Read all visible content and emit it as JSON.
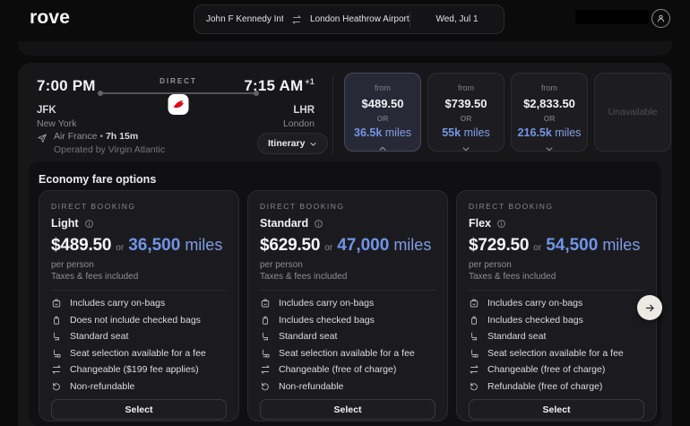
{
  "colors": {
    "accent_miles_blue": "#7495e6",
    "brand_logo_red": "#dd0b1c",
    "selected_card_border": "#45485c",
    "arrow_button_bg": "#edeae3"
  },
  "brand": {
    "logo_text": "rove"
  },
  "header": {
    "search": {
      "origin": "John F Kennedy Internatior",
      "destination": "London Heathrow Airport (L",
      "date": "Wed, Jul 1"
    }
  },
  "flight": {
    "departure": {
      "time": "7:00 PM",
      "airport_code": "JFK",
      "city": "New York"
    },
    "arrival": {
      "time": "7:15 AM",
      "day_offset": "+1",
      "airport_code": "LHR",
      "city": "London"
    },
    "route_type": "DIRECT",
    "airline": "Air France",
    "separator": "•",
    "duration": "7h 15m",
    "operated_by": "Operated by Virgin Atlantic",
    "itinerary_label": "Itinerary"
  },
  "price_summary": {
    "cards": [
      {
        "from_label": "from",
        "price": "$489.50",
        "or_label": "OR",
        "miles": "36.5k",
        "miles_word": "miles",
        "chev": "chevron-up",
        "state": "selected"
      },
      {
        "from_label": "from",
        "price": "$739.50",
        "or_label": "OR",
        "miles": "55k",
        "miles_word": "miles",
        "chev": "chevron-down"
      },
      {
        "from_label": "from",
        "price": "$2,833.50",
        "or_label": "OR",
        "miles": "216.5k",
        "miles_word": "miles",
        "chev": "chevron-down"
      }
    ],
    "unavailable_label": "Unavailable"
  },
  "fare_section": {
    "title": "Economy fare options",
    "cards": [
      {
        "eyebrow": "DIRECT BOOKING",
        "name": "Light",
        "price": "$489.50",
        "or_label": "or",
        "miles": "36,500",
        "miles_word": "miles",
        "per_person": "per person",
        "taxes_note": "Taxes & fees included",
        "features": [
          {
            "icon": "carry-on-bag",
            "text": "Includes carry on-bags"
          },
          {
            "icon": "checked-bag",
            "text": "Does not include checked bags"
          },
          {
            "icon": "seat",
            "text": "Standard seat"
          },
          {
            "icon": "seat-selection",
            "text": "Seat selection available for a fee"
          },
          {
            "icon": "change-arrows",
            "text": "Changeable ($199 fee applies)"
          },
          {
            "icon": "refund",
            "text": "Non-refundable"
          }
        ],
        "select_label": "Select"
      },
      {
        "eyebrow": "DIRECT BOOKING",
        "name": "Standard",
        "price": "$629.50",
        "or_label": "or",
        "miles": "47,000",
        "miles_word": "miles",
        "per_person": "per person",
        "taxes_note": "Taxes & fees included",
        "features": [
          {
            "icon": "carry-on-bag",
            "text": "Includes carry on-bags"
          },
          {
            "icon": "checked-bag",
            "text": "Includes checked bags"
          },
          {
            "icon": "seat",
            "text": "Standard seat"
          },
          {
            "icon": "seat-selection",
            "text": "Seat selection available for a fee"
          },
          {
            "icon": "change-arrows",
            "text": "Changeable (free of charge)"
          },
          {
            "icon": "refund",
            "text": "Non-refundable"
          }
        ],
        "select_label": "Select"
      },
      {
        "eyebrow": "DIRECT BOOKING",
        "name": "Flex",
        "price": "$729.50",
        "or_label": "or",
        "miles": "54,500",
        "miles_word": "miles",
        "per_person": "per person",
        "taxes_note": "Taxes & fees included",
        "features": [
          {
            "icon": "carry-on-bag",
            "text": "Includes carry on-bags"
          },
          {
            "icon": "checked-bag",
            "text": "Includes checked bags"
          },
          {
            "icon": "seat",
            "text": "Standard seat"
          },
          {
            "icon": "seat-selection",
            "text": "Seat selection available for a fee"
          },
          {
            "icon": "change-arrows",
            "text": "Changeable (free of charge)"
          },
          {
            "icon": "refund",
            "text": "Refundable (free of charge)"
          }
        ],
        "select_label": "Select"
      }
    ]
  }
}
